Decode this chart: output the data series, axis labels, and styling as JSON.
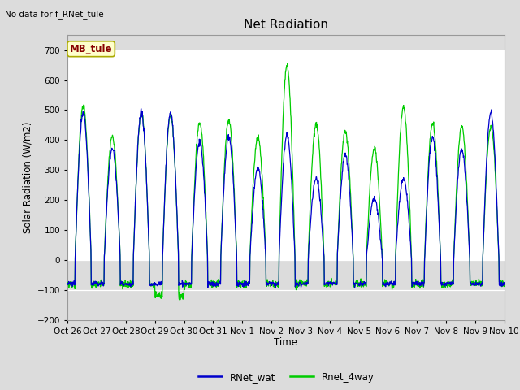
{
  "title": "Net Radiation",
  "ylabel": "Solar Radiation (W/m2)",
  "xlabel": "Time",
  "no_data_text": "No data for f_RNet_tule",
  "mb_tule_label": "MB_tule",
  "ylim": [
    -200,
    750
  ],
  "yticks": [
    -200,
    -100,
    0,
    100,
    200,
    300,
    400,
    500,
    600,
    700
  ],
  "legend_labels": [
    "RNet_wat",
    "Rnet_4way"
  ],
  "legend_colors": [
    "#0000ee",
    "#00ee00"
  ],
  "bg_color": "#dcdcdc",
  "band_white": "#ffffff",
  "band_gray": "#dcdcdc",
  "xtick_labels": [
    "Oct 26",
    "Oct 27",
    "Oct 28",
    "Oct 29",
    "Oct 30",
    "Oct 31",
    "Nov 1",
    "Nov 2",
    "Nov 3",
    "Nov 4",
    "Nov 5",
    "Nov 6",
    "Nov 7",
    "Nov 8",
    "Nov 9",
    "Nov 10"
  ],
  "num_days": 15,
  "samples_per_day": 96,
  "rnet_wat_peaks": [
    490,
    370,
    490,
    490,
    395,
    410,
    305,
    415,
    270,
    350,
    205,
    270,
    410,
    370,
    490
  ],
  "rnet_4way_peaks": [
    515,
    410,
    490,
    480,
    460,
    465,
    410,
    650,
    455,
    430,
    370,
    510,
    455,
    445,
    445
  ]
}
